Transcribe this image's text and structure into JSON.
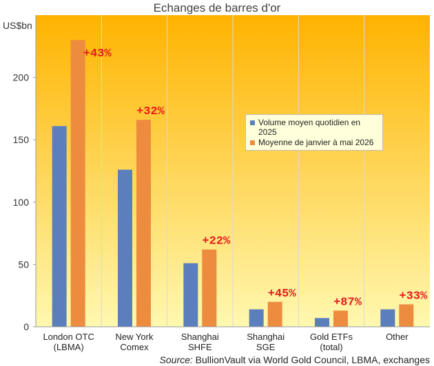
{
  "chart_data": {
    "type": "bar",
    "title": "Echanges de barres d'or",
    "ylabel": "US$bn",
    "ylim": [
      0,
      250
    ],
    "yticks": [
      0,
      50,
      100,
      150,
      200
    ],
    "grid": "none",
    "legend_position": "center-right",
    "categories": [
      [
        "London OTC",
        "(LBMA)"
      ],
      [
        "New York",
        "Comex"
      ],
      [
        "Shanghai",
        "SHFE"
      ],
      [
        "Shanghai",
        "SGE"
      ],
      [
        "Gold ETFs",
        "(total)"
      ],
      [
        "Other"
      ]
    ],
    "series": [
      {
        "name": "Volume moyen quotidien en 2025",
        "color": "#5b7fbd",
        "values": [
          161,
          126,
          51,
          14,
          7,
          14
        ]
      },
      {
        "name": "Moyenne de janvier à mai 2026",
        "color": "#ed8b3f",
        "values": [
          230,
          166,
          62,
          20,
          13,
          18
        ]
      }
    ],
    "annotations": [
      "+43%",
      "+32%",
      "+22%",
      "+45%",
      "+87%",
      "+33%"
    ],
    "annotation_color": "#e61c1c",
    "background_gradient": [
      "#ffb300",
      "#fff8b0"
    ]
  },
  "source": {
    "label": "Source:",
    "text": "BullionVault via World Gold Council, LBMA, exchanges"
  }
}
